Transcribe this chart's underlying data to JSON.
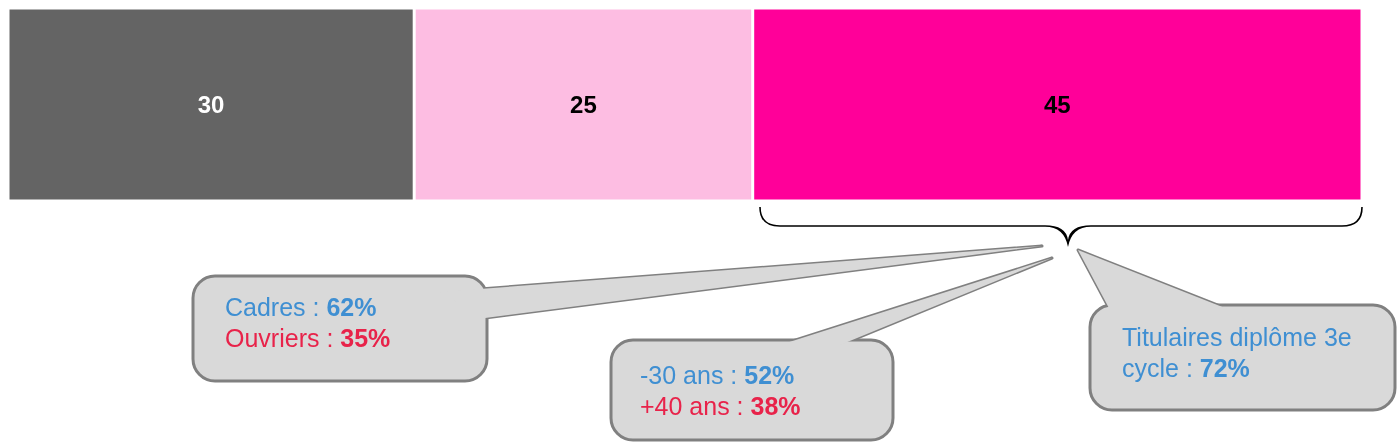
{
  "chart_data": {
    "type": "bar",
    "orientation": "horizontal",
    "stacked": true,
    "categories": [
      null
    ],
    "series": [
      {
        "color": "#646464",
        "values": [
          30
        ]
      },
      {
        "color": "#fdbde2",
        "values": [
          25
        ]
      },
      {
        "color": "#ff0099",
        "values": [
          45
        ]
      }
    ],
    "data_labels": true,
    "annotations": [
      "Cadres : 62%",
      "Ouvriers : 35%",
      "-30 ans : 52%",
      "+40 ans : 38%",
      "Titulaires diplôme 3e cycle : 72%"
    ]
  }
}
